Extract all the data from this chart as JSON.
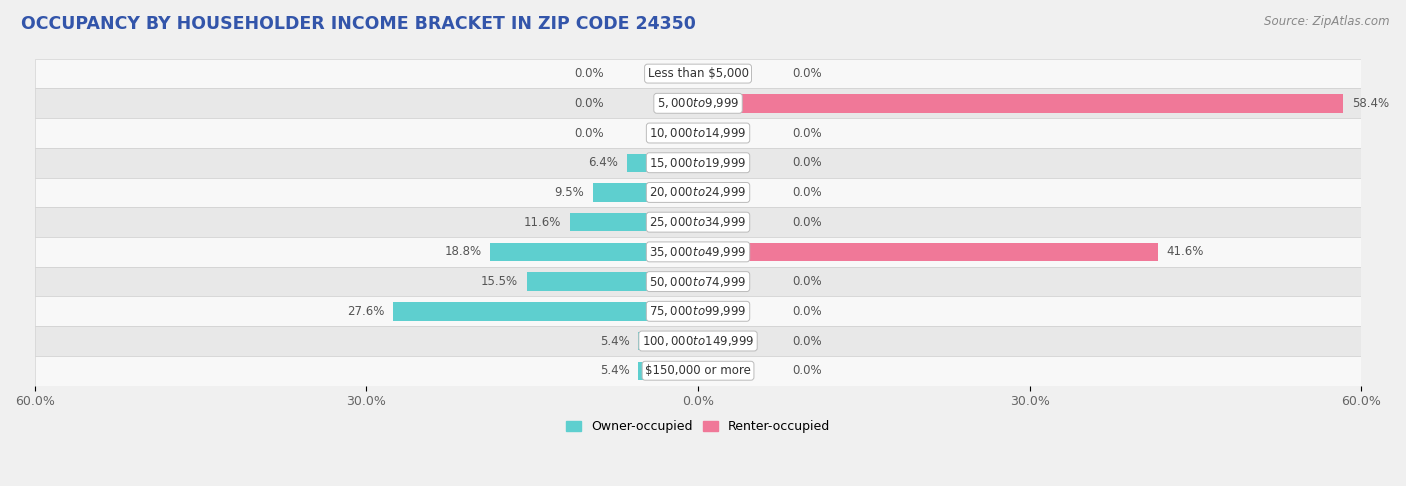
{
  "title": "OCCUPANCY BY HOUSEHOLDER INCOME BRACKET IN ZIP CODE 24350",
  "source": "Source: ZipAtlas.com",
  "categories": [
    "Less than $5,000",
    "$5,000 to $9,999",
    "$10,000 to $14,999",
    "$15,000 to $19,999",
    "$20,000 to $24,999",
    "$25,000 to $34,999",
    "$35,000 to $49,999",
    "$50,000 to $74,999",
    "$75,000 to $99,999",
    "$100,000 to $149,999",
    "$150,000 or more"
  ],
  "owner_values": [
    0.0,
    0.0,
    0.0,
    6.4,
    9.5,
    11.6,
    18.8,
    15.5,
    27.6,
    5.4,
    5.4
  ],
  "renter_values": [
    0.0,
    58.4,
    0.0,
    0.0,
    0.0,
    0.0,
    41.6,
    0.0,
    0.0,
    0.0,
    0.0
  ],
  "owner_color": "#5ecfcf",
  "renter_color": "#f07898",
  "bar_height": 0.62,
  "xlim": 60.0,
  "background_color": "#f0f0f0",
  "row_bg_odd": "#f8f8f8",
  "row_bg_even": "#e8e8e8",
  "title_color": "#3355aa",
  "title_fontsize": 12.5,
  "source_fontsize": 8.5,
  "label_fontsize": 8.5,
  "axis_label_fontsize": 9,
  "legend_fontsize": 9
}
